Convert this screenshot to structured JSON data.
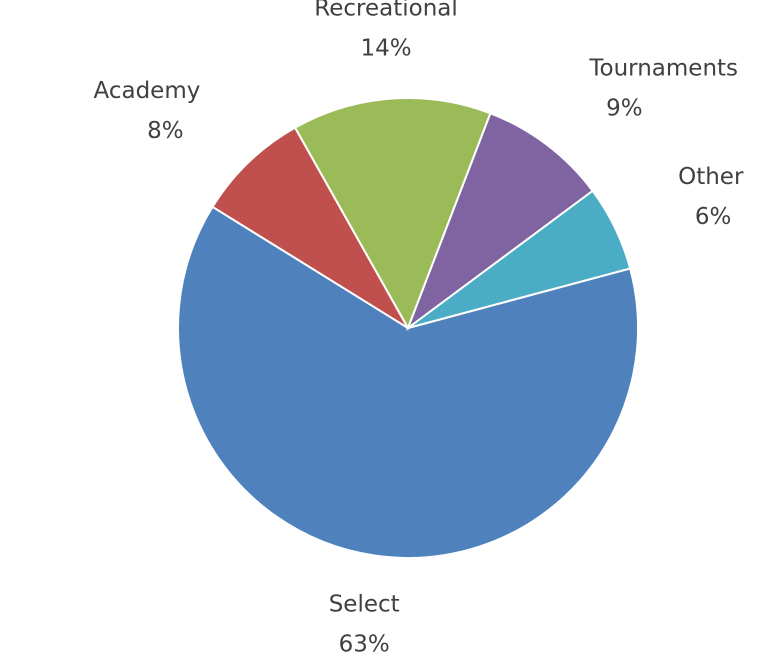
{
  "chart_data": {
    "type": "pie",
    "categories": [
      "Select",
      "Academy",
      "Recreational",
      "Tournaments",
      "Other"
    ],
    "values": [
      63,
      8,
      14,
      9,
      6
    ],
    "value_labels": [
      "63%",
      "8%",
      "14%",
      "9%",
      "6%"
    ],
    "colors": [
      "#4f81bd",
      "#c0504d",
      "#9bbb59",
      "#8064a2",
      "#4bacc6"
    ]
  }
}
